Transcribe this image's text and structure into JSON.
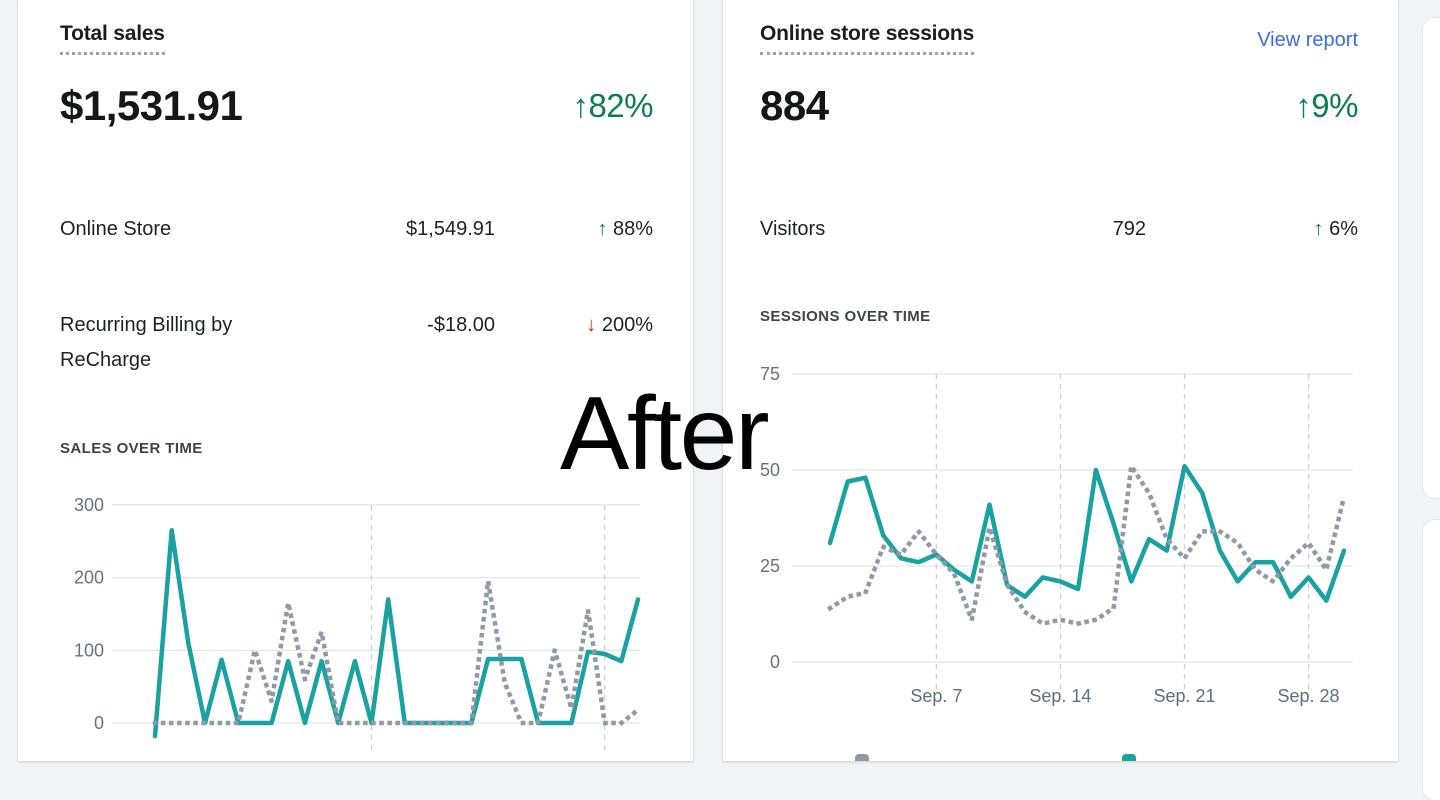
{
  "page": {
    "overlay_text": "After",
    "background": "#f2f3f5"
  },
  "colors": {
    "accent_teal": "#1aa2a2",
    "comparison_grey": "#8f9aa6",
    "positive_green": "#0d7d52",
    "negative_red": "#d72c0d",
    "link_blue": "#3b6ce4",
    "axis_text": "#64737f",
    "gridline": "#e4e6e9"
  },
  "cards": {
    "total_sales": {
      "title": "Total sales",
      "value": "$1,531.91",
      "delta": "↑82%",
      "rows": [
        {
          "label": "Online Store",
          "value": "$1,549.91",
          "arrow": "↑",
          "pct": "88%",
          "direction": "up"
        },
        {
          "label": "Recurring Billing by ReCharge",
          "value": "-$18.00",
          "arrow": "↓",
          "pct": "200%",
          "direction": "down"
        }
      ],
      "section": "SALES OVER TIME"
    },
    "sessions": {
      "title": "Online store sessions",
      "link": "View report",
      "value": "884",
      "delta": "↑9%",
      "rows": [
        {
          "label": "Visitors",
          "value": "792",
          "arrow": "↑",
          "pct": "6%",
          "direction": "up"
        }
      ],
      "section": "SESSIONS OVER TIME"
    }
  },
  "chart_data": [
    {
      "type": "line",
      "title": "SALES OVER TIME",
      "xlabel": "",
      "ylabel": "",
      "yticks": [
        0,
        100,
        200,
        300
      ],
      "ylim": [
        -25,
        300
      ],
      "x_points": 30,
      "x_gridline_indices": [
        13,
        27
      ],
      "xticks": [],
      "grid": true,
      "legend": "none",
      "series": [
        {
          "name": "current-period-sales",
          "color": "#1aa2a2",
          "style": "solid",
          "values": [
            -18,
            265,
            110,
            0,
            87,
            0,
            0,
            0,
            85,
            0,
            85,
            0,
            85,
            0,
            170,
            0,
            0,
            0,
            0,
            0,
            88,
            88,
            88,
            0,
            0,
            0,
            98,
            95,
            85,
            170
          ]
        },
        {
          "name": "previous-period-sales",
          "color": "#8f9aa6",
          "style": "dotted",
          "values": [
            0,
            0,
            0,
            0,
            0,
            0,
            100,
            30,
            165,
            60,
            125,
            0,
            0,
            0,
            0,
            0,
            0,
            0,
            0,
            0,
            195,
            55,
            0,
            0,
            100,
            20,
            155,
            0,
            0,
            18
          ]
        }
      ]
    },
    {
      "type": "line",
      "title": "SESSIONS OVER TIME",
      "xlabel": "",
      "ylabel": "",
      "yticks": [
        0,
        25,
        50,
        75
      ],
      "ylim": [
        0,
        75
      ],
      "x_points": 30,
      "x_gridline_indices": [
        6,
        13,
        20,
        27
      ],
      "xticks": [
        {
          "label": "Sep. 7",
          "index": 6
        },
        {
          "label": "Sep. 14",
          "index": 13
        },
        {
          "label": "Sep. 21",
          "index": 20
        },
        {
          "label": "Sep. 28",
          "index": 27
        }
      ],
      "grid": true,
      "legend": "bottom (cut off)",
      "legend_chip_colors": [
        "#8f9aa6",
        "#1aa2a2"
      ],
      "series": [
        {
          "name": "current-period-sessions",
          "color": "#1aa2a2",
          "style": "solid",
          "values": [
            31,
            47,
            48,
            33,
            27,
            26,
            28,
            24,
            21,
            41,
            20,
            17,
            22,
            21,
            19,
            50,
            36,
            21,
            32,
            29,
            51,
            44,
            29,
            21,
            26,
            26,
            17,
            22,
            16,
            29
          ]
        },
        {
          "name": "previous-period-sessions",
          "color": "#8f9aa6",
          "style": "dotted",
          "values": [
            14,
            17,
            18,
            30,
            28,
            34,
            28,
            23,
            11,
            35,
            20,
            13,
            10,
            11,
            10,
            11,
            14,
            51,
            44,
            32,
            27,
            34,
            34,
            31,
            24,
            21,
            27,
            31,
            24,
            43
          ]
        }
      ]
    }
  ]
}
